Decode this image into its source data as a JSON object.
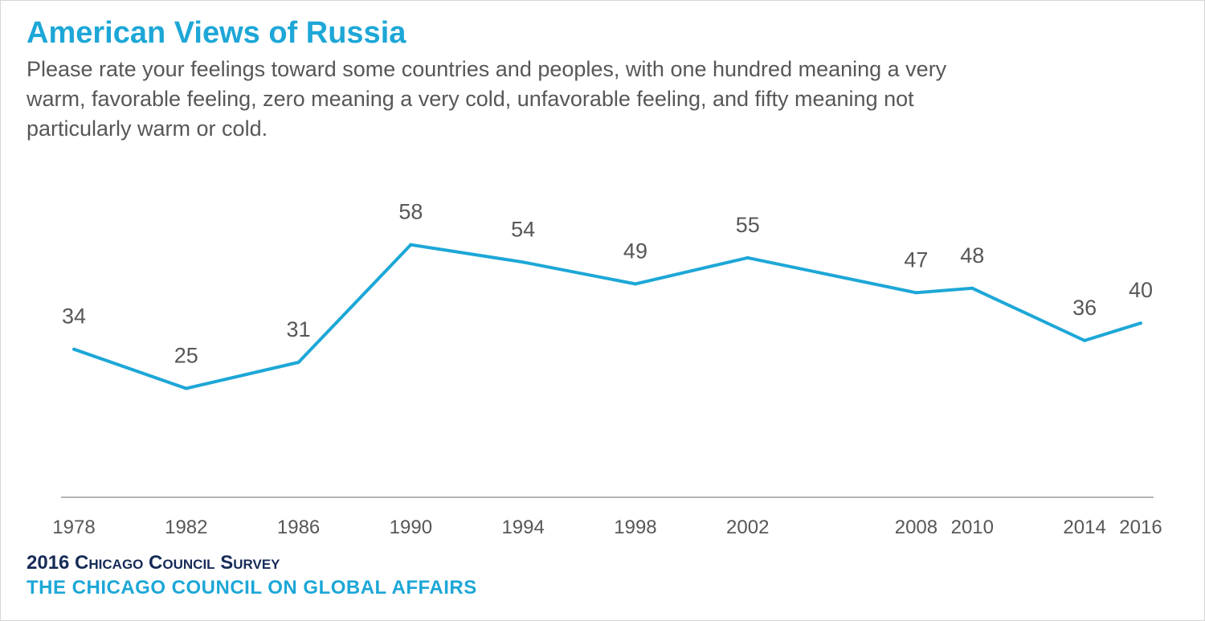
{
  "header": {
    "title": "American Views of Russia",
    "subtitle": "Please rate your feelings toward some countries and peoples, with one hundred meaning a very warm, favorable feeling, zero meaning a very cold, unfavorable feeling, and fifty meaning not particularly warm or cold."
  },
  "footer": {
    "source": "2016 Chicago Council Survey",
    "organization": "THE CHICAGO COUNCIL ON GLOBAL AFFAIRS"
  },
  "colors": {
    "accent": "#1da7d7",
    "text": "#575757",
    "navy": "#162b57",
    "axis": "#b5b5b5"
  },
  "chart_data": {
    "type": "line",
    "title": "American Views of Russia",
    "xlabel": "",
    "ylabel": "",
    "x": [
      1978,
      1982,
      1986,
      1990,
      1994,
      1998,
      2002,
      2008,
      2010,
      2014,
      2016
    ],
    "series": [
      {
        "values": [
          34,
          25,
          31,
          58,
          54,
          49,
          55,
          47,
          48,
          36,
          40
        ]
      }
    ],
    "ylim": [
      0,
      100
    ],
    "grid": false,
    "legend": "none",
    "data_labels": true
  }
}
